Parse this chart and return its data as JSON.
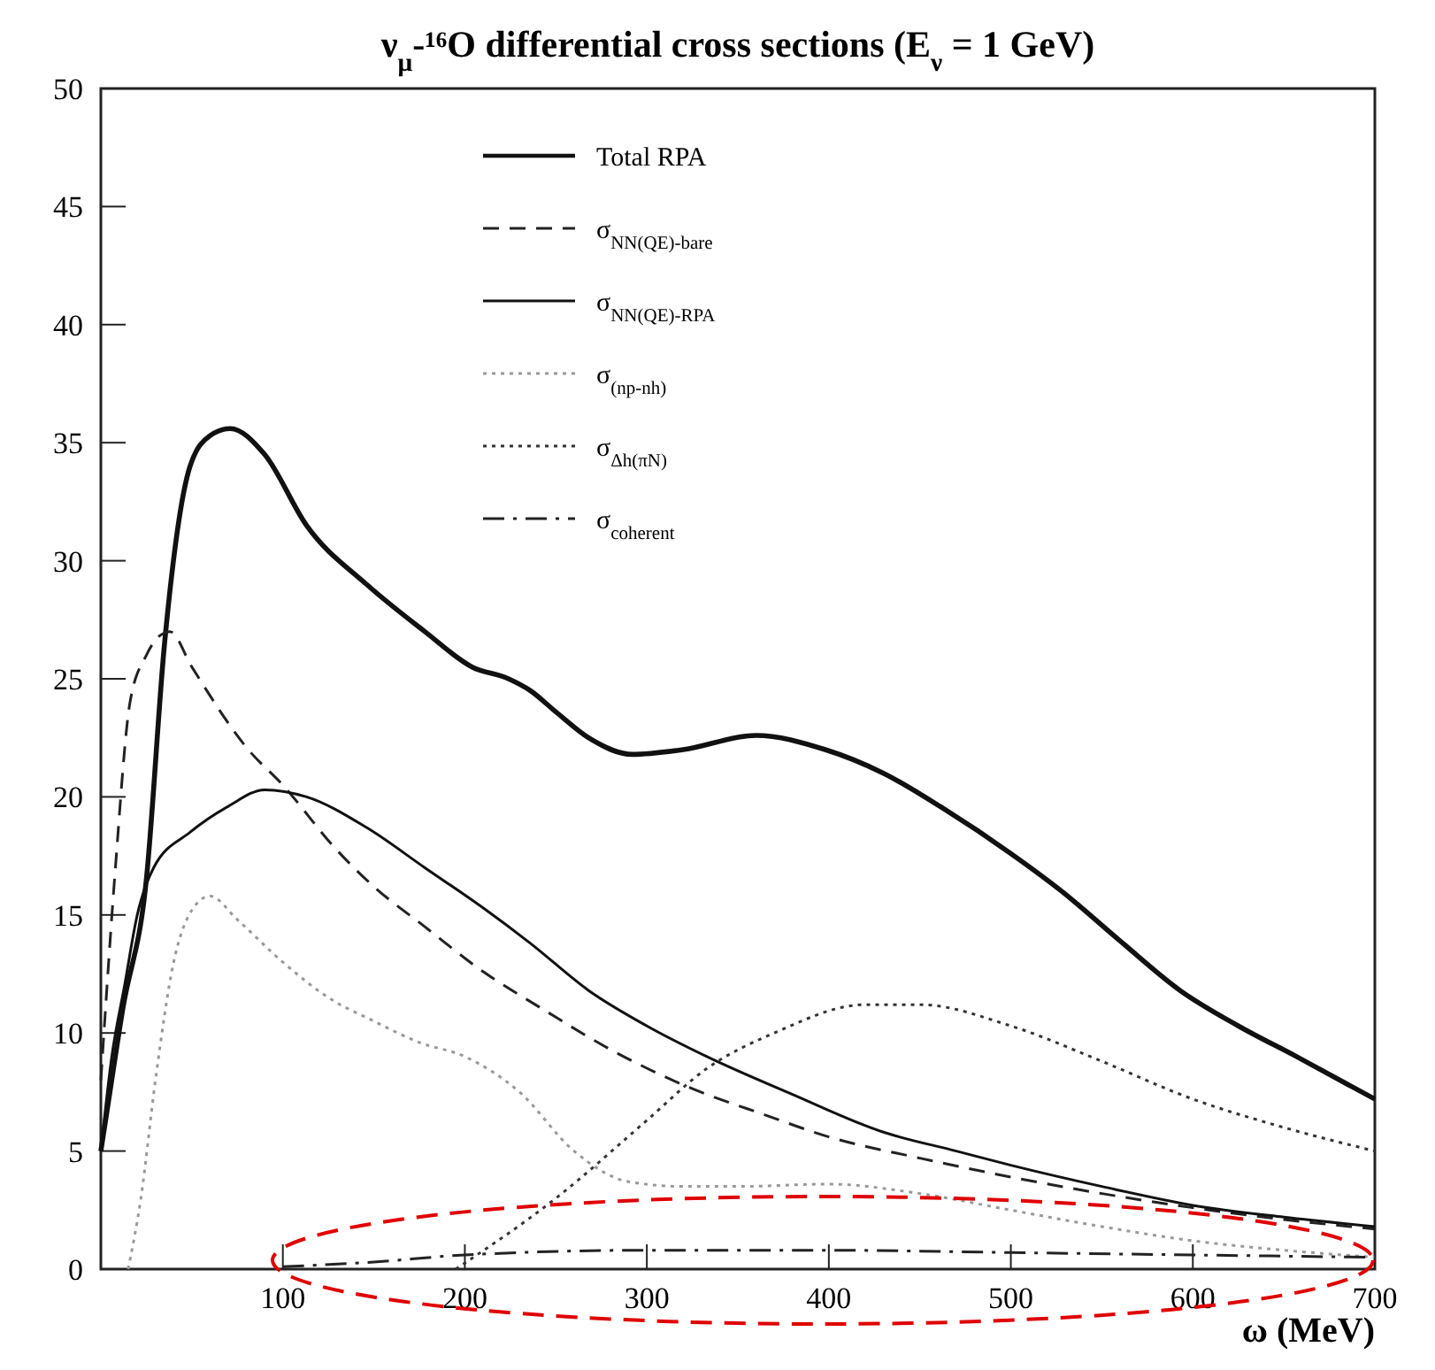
{
  "chart_data": {
    "type": "line",
    "title": "ν$_{μ}$-¹⁶O differential cross sections (E$_{ν}$ = 1 GeV)",
    "xlabel": "ω (MeV)",
    "xlim": [
      0,
      700
    ],
    "ylim": [
      0,
      50
    ],
    "xticks": [
      100,
      200,
      300,
      400,
      500,
      600,
      700
    ],
    "yticks": [
      0,
      5,
      10,
      15,
      20,
      25,
      30,
      35,
      40,
      45,
      50
    ],
    "legend": "top",
    "grid": false,
    "series": [
      {
        "name": "Total RPA",
        "color": "#111111",
        "line_style": "solid",
        "x": [
          0,
          3,
          12,
          25,
          35,
          49,
          60,
          71,
          90,
          113,
          146,
          178,
          204,
          224,
          236,
          250,
          268,
          292,
          320,
          360,
          398,
          430,
          463,
          500,
          528,
          560,
          593,
          625,
          657,
          700
        ],
        "values": [
          5,
          6.5,
          11,
          16.5,
          26.5,
          34,
          35.3,
          35.6,
          34.5,
          31.5,
          29,
          27,
          25.5,
          25,
          24.5,
          23.6,
          22.5,
          21.8,
          22,
          22.6,
          22,
          21,
          19.5,
          17.6,
          16,
          13.9,
          11.8,
          10.3,
          9,
          7.2
        ]
      },
      {
        "name": "σ$_{NN(QE)-bare}$",
        "color": "#222222",
        "line_style": "dashed",
        "x": [
          0,
          8,
          16,
          25,
          32,
          38,
          50,
          81,
          100,
          129,
          150,
          178,
          210,
          243,
          280,
          320,
          366,
          400,
          450,
          500,
          550,
          600,
          650,
          700
        ],
        "values": [
          8,
          17,
          24,
          26,
          26.8,
          27,
          25.5,
          22,
          20.5,
          17.8,
          16.2,
          14.5,
          12.6,
          11,
          9.3,
          7.8,
          6.5,
          5.6,
          4.7,
          3.9,
          3.2,
          2.6,
          2.1,
          1.7
        ]
      },
      {
        "name": "σ$_{NN(QE)-RPA}$",
        "color": "#111111",
        "line_style": "solid",
        "x": [
          0,
          6,
          13,
          20,
          29,
          49,
          70,
          90,
          113,
          146,
          178,
          210,
          236,
          268,
          300,
          333,
          380,
          430,
          470,
          500,
          550,
          600,
          650,
          700
        ],
        "values": [
          5,
          9,
          12,
          15,
          17,
          18.5,
          19.6,
          20.3,
          20,
          18.7,
          17,
          15.3,
          13.8,
          11.8,
          10.3,
          9,
          7.4,
          5.8,
          5,
          4.4,
          3.5,
          2.7,
          2.2,
          1.8
        ]
      },
      {
        "name": "σ$_{(np-nh)}$",
        "color": "#999999",
        "line_style": "dotted",
        "x": [
          15,
          22,
          30,
          40,
          50,
          60,
          75,
          100,
          125,
          150,
          175,
          200,
          230,
          260,
          290,
          320,
          350,
          400,
          450,
          500,
          550,
          600,
          650,
          700
        ],
        "values": [
          0,
          3,
          8,
          13,
          15.2,
          15.8,
          14.8,
          13,
          11.5,
          10.5,
          9.6,
          9,
          7.5,
          5,
          3.7,
          3.5,
          3.5,
          3.6,
          3.2,
          2.5,
          1.8,
          1.2,
          0.8,
          0.5
        ]
      },
      {
        "name": "σ$_{Δh(πN)}$",
        "color": "#333333",
        "line_style": "dotted",
        "x": [
          195,
          250,
          300,
          333,
          370,
          420,
          450,
          500,
          550,
          600,
          650,
          700
        ],
        "values": [
          0,
          3,
          6.3,
          8.5,
          10,
          11.2,
          11.2,
          10.3,
          8.8,
          7.2,
          6,
          5
        ]
      },
      {
        "name": "σ$_{coherent}$",
        "color": "#222222",
        "line_style": "dashdot",
        "x": [
          100,
          150,
          200,
          300,
          400,
          500,
          600,
          700
        ],
        "values": [
          0.1,
          0.3,
          0.6,
          0.8,
          0.8,
          0.7,
          0.6,
          0.5
        ]
      }
    ]
  }
}
